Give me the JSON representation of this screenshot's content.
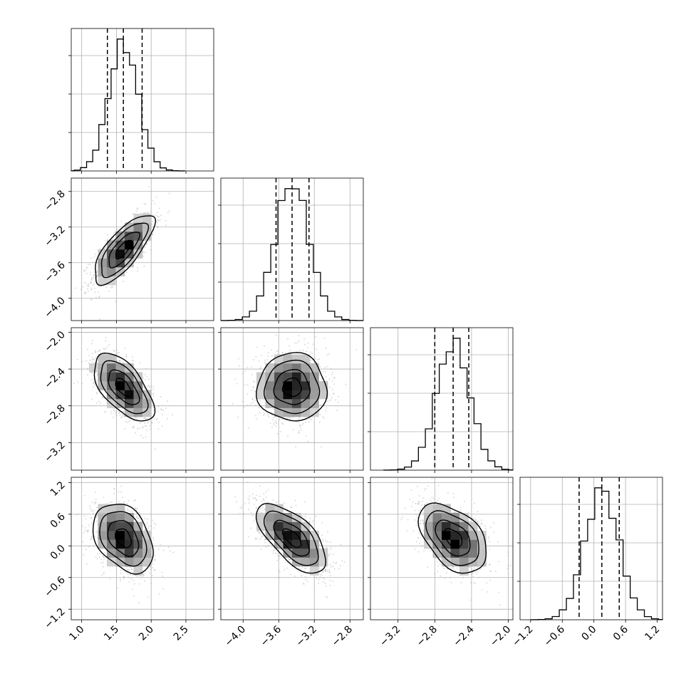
{
  "chart_data": {
    "type": "corner",
    "parameters": 4,
    "grid": true,
    "axes": [
      {
        "lim": [
          0.85,
          2.9
        ],
        "ticks": [
          1.0,
          1.5,
          2.0,
          2.5
        ],
        "ticklabels": [
          "1.0",
          "1.5",
          "2.0",
          "2.5"
        ]
      },
      {
        "lim": [
          -4.25,
          -2.65
        ],
        "ticks": [
          -4.0,
          -3.6,
          -3.2,
          -2.8
        ],
        "ticklabels": [
          "−4.0",
          "−3.6",
          "−3.2",
          "−2.8"
        ]
      },
      {
        "lim": [
          -3.5,
          -1.95
        ],
        "ticks": [
          -3.2,
          -2.8,
          -2.4,
          -2.0
        ],
        "ticklabels": [
          "−3.2",
          "−2.8",
          "−2.4",
          "−2.0"
        ]
      },
      {
        "lim": [
          -1.4,
          1.3
        ],
        "ticks": [
          -1.2,
          -0.6,
          0.0,
          0.6,
          1.2
        ],
        "ticklabels": [
          "−1.2",
          "−0.6",
          "0.0",
          "0.6",
          "1.2"
        ]
      }
    ],
    "marginals": [
      {
        "mean": 1.6,
        "sd": 0.21,
        "quantiles": [
          1.37,
          1.6,
          1.87
        ]
      },
      {
        "mean": -3.45,
        "sd": 0.19,
        "quantiles": [
          -3.63,
          -3.45,
          -3.26
        ]
      },
      {
        "mean": -2.6,
        "sd": 0.18,
        "quantiles": [
          -2.8,
          -2.6,
          -2.43
        ]
      },
      {
        "mean": 0.15,
        "sd": 0.32,
        "quantiles": [
          -0.28,
          0.15,
          0.48
        ]
      }
    ],
    "correlations": [
      {
        "pair": [
          1,
          0
        ],
        "rho": 0.75
      },
      {
        "pair": [
          2,
          0
        ],
        "rho": -0.6
      },
      {
        "pair": [
          2,
          1
        ],
        "rho": 0.0
      },
      {
        "pair": [
          3,
          0
        ],
        "rho": -0.35
      },
      {
        "pair": [
          3,
          1
        ],
        "rho": -0.65
      },
      {
        "pair": [
          3,
          2
        ],
        "rho": -0.45
      }
    ]
  }
}
